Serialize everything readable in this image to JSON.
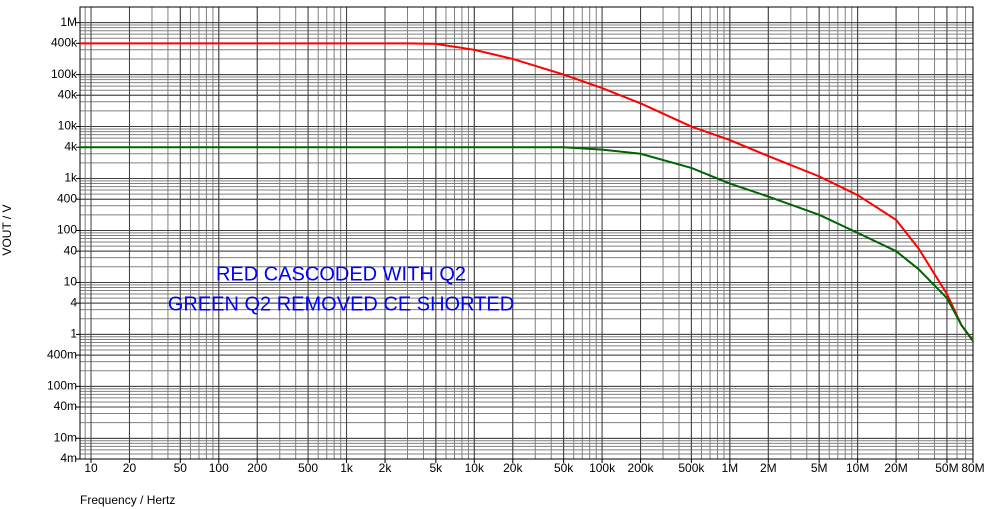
{
  "chart_data": {
    "type": "line",
    "ylabel": "VOUT / V",
    "xlabel": "Frequency / Hertz",
    "log_x": true,
    "log_y": true,
    "grid": true,
    "minor_grid": true,
    "xlim": [
      8.2,
      80000000
    ],
    "ylim": [
      0.004,
      2000000
    ],
    "xticks": [
      10,
      20,
      50,
      100,
      200,
      500,
      {
        "value": 1000,
        "label": "1k"
      },
      {
        "value": 2000,
        "label": "2k"
      },
      {
        "value": 5000,
        "label": "5k"
      },
      {
        "value": 10000,
        "label": "10k"
      },
      {
        "value": 20000,
        "label": "20k"
      },
      {
        "value": 50000,
        "label": "50k"
      },
      {
        "value": 100000,
        "label": "100k"
      },
      {
        "value": 200000,
        "label": "200k"
      },
      {
        "value": 500000,
        "label": "500k"
      },
      {
        "value": 1000000,
        "label": "1M"
      },
      {
        "value": 2000000,
        "label": "2M"
      },
      {
        "value": 5000000,
        "label": "5M"
      },
      {
        "value": 10000000,
        "label": "10M"
      },
      {
        "value": 20000000,
        "label": "20M"
      },
      {
        "value": 50000000,
        "label": "50M"
      },
      {
        "value": 80000000,
        "label": "80M"
      }
    ],
    "yticks": [
      {
        "value": 1000000,
        "label": "1M"
      },
      {
        "value": 400000,
        "label": "400k"
      },
      {
        "value": 100000,
        "label": "100k"
      },
      {
        "value": 40000,
        "label": "40k"
      },
      {
        "value": 10000,
        "label": "10k"
      },
      {
        "value": 4000,
        "label": "4k"
      },
      {
        "value": 1000,
        "label": "1k"
      },
      400,
      100,
      40,
      10,
      4,
      1,
      {
        "value": 0.4,
        "label": "400m"
      },
      {
        "value": 0.1,
        "label": "100m"
      },
      {
        "value": 0.04,
        "label": "40m"
      },
      {
        "value": 0.01,
        "label": "10m"
      },
      {
        "value": 0.004,
        "label": "4m"
      }
    ],
    "x": [
      8.2,
      100,
      1000,
      3000,
      5000,
      10000,
      20000,
      50000,
      100000,
      200000,
      500000,
      1000000,
      2000000,
      5000000,
      10000000,
      20000000,
      30000000,
      50000000,
      65000000,
      80000000
    ],
    "series": [
      {
        "color": "#ff0000",
        "values": [
          400000,
          400000,
          400000,
          400000,
          390000,
          300000,
          200000,
          100000,
          55000,
          28000,
          10000,
          5500,
          2700,
          1100,
          480,
          160,
          45,
          6,
          1.5,
          0.75
        ]
      },
      {
        "color": "#006400",
        "values": [
          4000,
          4000,
          4000,
          4000,
          4000,
          4000,
          4000,
          4000,
          3600,
          3000,
          1600,
          800,
          450,
          200,
          90,
          40,
          18,
          5,
          1.5,
          0.75
        ]
      }
    ],
    "annotations": [
      "RED CASCODED WITH Q2",
      "GREEN Q2 REMOVED CE SHORTED"
    ],
    "annotation_color": "#0000ff"
  }
}
